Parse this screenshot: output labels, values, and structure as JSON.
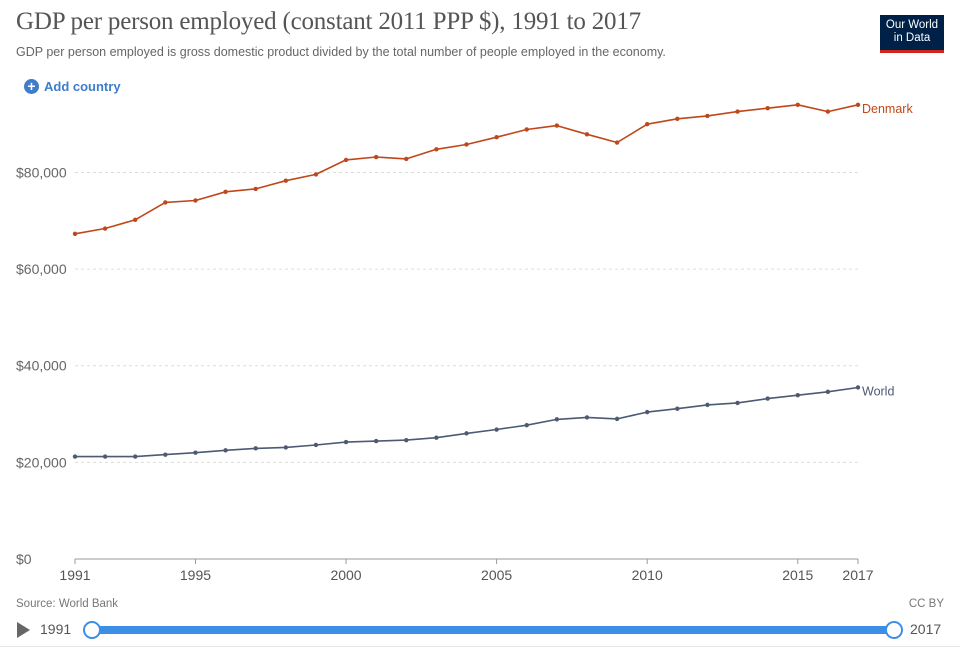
{
  "header": {
    "title": "GDP per person employed (constant 2011 PPP $), 1991 to 2017",
    "subtitle": "GDP per person employed is gross domestic product divided by the total number of people employed in the economy.",
    "logo_line1": "Our World",
    "logo_line2": "in Data"
  },
  "controls": {
    "add_country_label": "Add country"
  },
  "footer": {
    "source": "Source: World Bank",
    "license": "CC BY"
  },
  "timeline": {
    "start_label": "1991",
    "end_label": "2017"
  },
  "colors": {
    "denmark": "#c0471a",
    "world": "#4c5a73",
    "grid": "#dddddd",
    "accent": "#3d7dca"
  },
  "chart_data": {
    "type": "line",
    "title": "GDP per person employed (constant 2011 PPP $), 1991 to 2017",
    "xlabel": "",
    "ylabel": "",
    "xlim": [
      1991,
      2017
    ],
    "ylim": [
      0,
      95000
    ],
    "x_ticks": [
      1991,
      1995,
      2000,
      2005,
      2010,
      2015,
      2017
    ],
    "y_ticks": [
      0,
      20000,
      40000,
      60000,
      80000
    ],
    "y_tick_labels": [
      "$0",
      "$20,000",
      "$40,000",
      "$60,000",
      "$80,000"
    ],
    "grid": "horizontal dashed",
    "x": [
      1991,
      1992,
      1993,
      1994,
      1995,
      1996,
      1997,
      1998,
      1999,
      2000,
      2001,
      2002,
      2003,
      2004,
      2005,
      2006,
      2007,
      2008,
      2009,
      2010,
      2011,
      2012,
      2013,
      2014,
      2015,
      2016,
      2017
    ],
    "series": [
      {
        "name": "Denmark",
        "color": "#c0471a",
        "values": [
          67300,
          68400,
          70200,
          73800,
          74200,
          76000,
          76600,
          78300,
          79600,
          82600,
          83200,
          82800,
          84800,
          85800,
          87300,
          88900,
          89700,
          87900,
          86200,
          90000,
          91100,
          91700,
          92600,
          93300,
          94000,
          92600,
          94000
        ]
      },
      {
        "name": "World",
        "color": "#4c5a73",
        "values": [
          21200,
          21200,
          21200,
          21600,
          22000,
          22500,
          22900,
          23100,
          23600,
          24200,
          24400,
          24600,
          25100,
          26000,
          26800,
          27700,
          28900,
          29300,
          29000,
          30400,
          31100,
          31900,
          32300,
          33200,
          33900,
          34600,
          35500
        ]
      }
    ]
  }
}
